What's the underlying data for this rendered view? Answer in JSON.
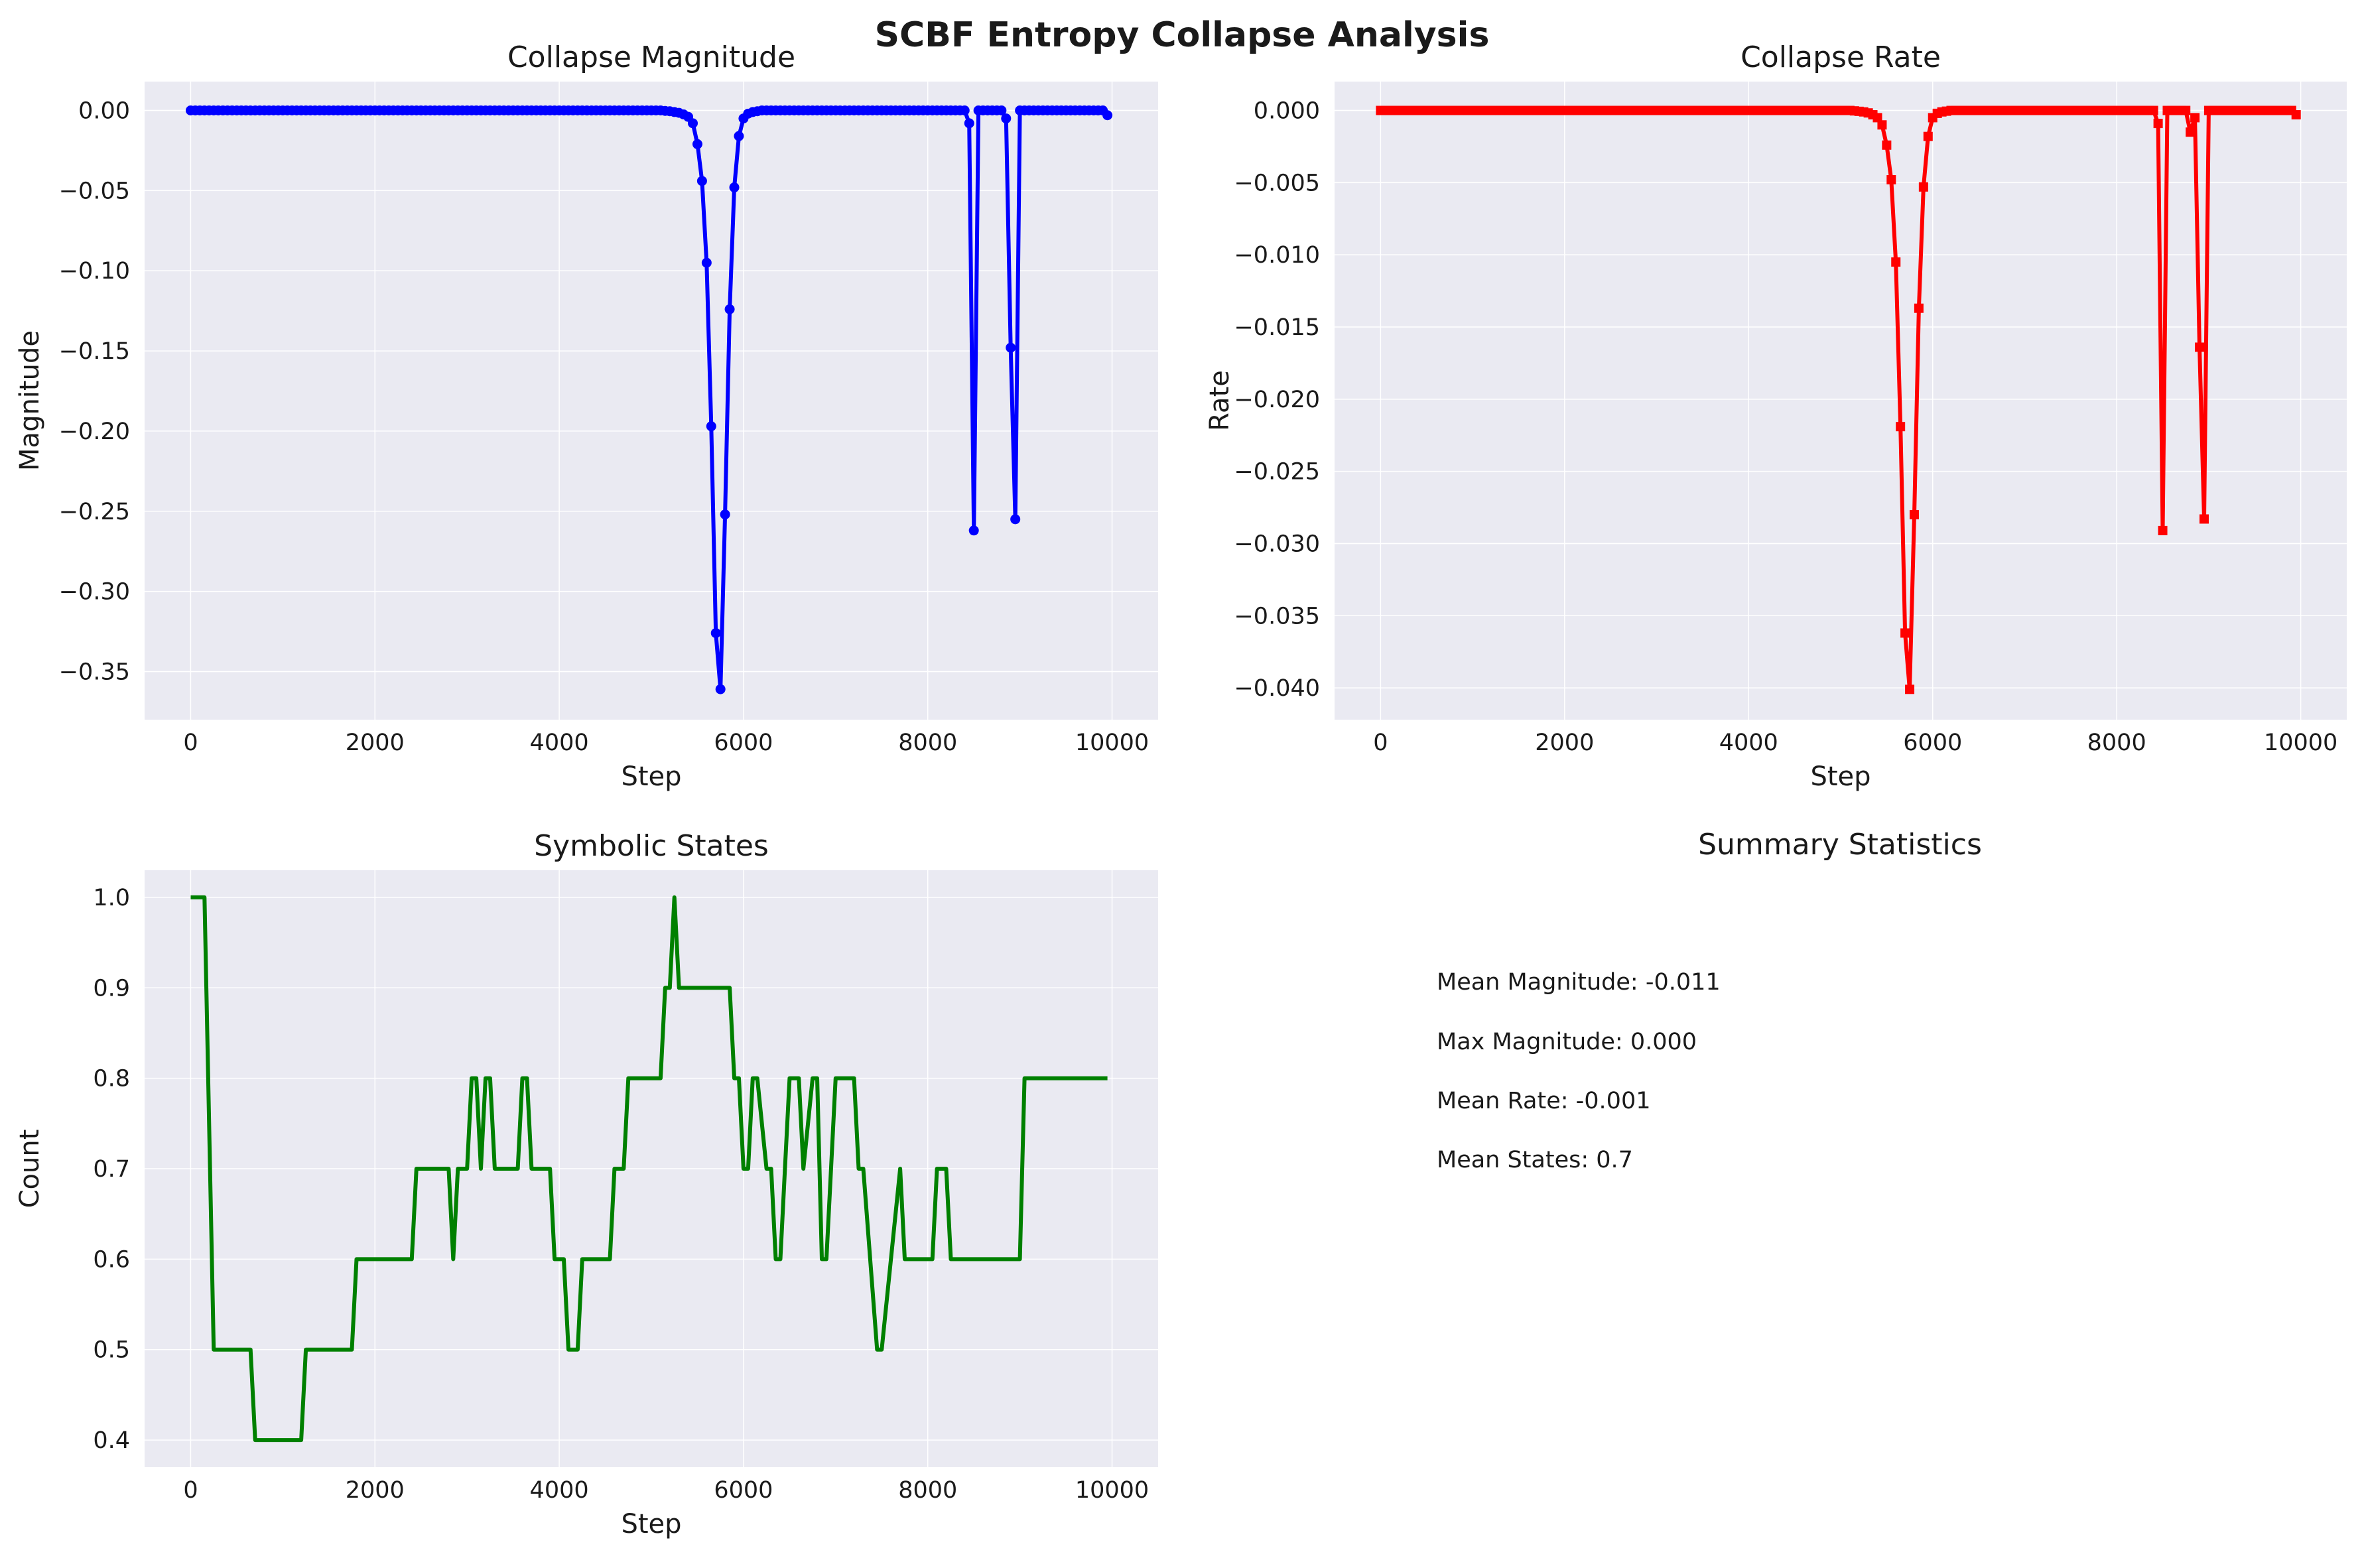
{
  "figure": {
    "title": "SCBF Entropy Collapse Analysis",
    "style": {
      "panel_bg": "#eaeaf2",
      "grid": "#ffffff",
      "text": "#1a1a1a"
    }
  },
  "chart_data": [
    {
      "type": "line",
      "title": "Collapse Magnitude",
      "xlabel": "Step",
      "ylabel": "Magnitude",
      "xlim": [
        -500,
        10500
      ],
      "ylim": [
        -0.38,
        0.018
      ],
      "xticks": [
        0,
        2000,
        4000,
        6000,
        8000,
        10000
      ],
      "yticks": [
        0.0,
        -0.05,
        -0.1,
        -0.15,
        -0.2,
        -0.25,
        -0.3,
        -0.35
      ],
      "ytick_labels": [
        "0.00",
        "−0.05",
        "−0.10",
        "−0.15",
        "−0.20",
        "−0.25",
        "−0.30",
        "−0.35"
      ],
      "grid": true,
      "series": [
        {
          "color": "#0000ff",
          "marker": "circle",
          "dense_zero_markers": {
            "from": 0,
            "to": 5050,
            "step": 50
          },
          "x": [
            5100,
            5150,
            5200,
            5250,
            5300,
            5350,
            5400,
            5450,
            5500,
            5550,
            5600,
            5650,
            5700,
            5750,
            5800,
            5850,
            5900,
            5950,
            6000,
            6050,
            6100,
            6150,
            6200,
            6250,
            6300,
            6350,
            6400,
            6450,
            6500,
            6550,
            6600,
            6650,
            6700,
            6750,
            6800,
            6850,
            6900,
            6950,
            7000,
            7050,
            7100,
            7150,
            7200,
            7250,
            7300,
            7350,
            7400,
            7450,
            7500,
            7550,
            7600,
            7650,
            7700,
            7750,
            7800,
            7850,
            7900,
            7950,
            8000,
            8050,
            8100,
            8150,
            8200,
            8250,
            8300,
            8350,
            8400,
            8450,
            8500,
            8550,
            8600,
            8650,
            8700,
            8750,
            8800,
            8850,
            8900,
            8950,
            9000,
            9050,
            9100,
            9150,
            9200,
            9250,
            9300,
            9350,
            9400,
            9450,
            9500,
            9550,
            9600,
            9650,
            9700,
            9750,
            9800,
            9850,
            9900,
            9950
          ],
          "y": [
            0,
            -0.0003,
            -0.0005,
            -0.001,
            -0.0015,
            -0.0025,
            -0.004,
            -0.008,
            -0.021,
            -0.044,
            -0.095,
            -0.197,
            -0.326,
            -0.361,
            -0.252,
            -0.124,
            -0.048,
            -0.016,
            -0.005,
            -0.002,
            -0.001,
            -0.0005,
            0,
            0,
            0,
            0,
            0,
            0,
            0,
            0,
            0,
            0,
            0,
            0,
            0,
            0,
            0,
            0,
            0,
            0,
            0,
            0,
            0,
            0,
            0,
            0,
            0,
            0,
            0,
            0,
            0,
            0,
            0,
            0,
            0,
            0,
            0,
            0,
            0,
            0,
            0,
            0,
            0,
            0,
            0,
            0,
            0,
            -0.008,
            -0.262,
            0,
            0,
            0,
            0,
            0,
            0,
            -0.005,
            -0.148,
            -0.255,
            0,
            0,
            0,
            0,
            0,
            0,
            0,
            0,
            0,
            0,
            0,
            0,
            0,
            0,
            0,
            0,
            0,
            0,
            0,
            -0.003
          ]
        }
      ]
    },
    {
      "type": "line",
      "title": "Collapse Rate",
      "xlabel": "Step",
      "ylabel": "Rate",
      "xlim": [
        -500,
        10500
      ],
      "ylim": [
        -0.0422,
        0.002
      ],
      "xticks": [
        0,
        2000,
        4000,
        6000,
        8000,
        10000
      ],
      "yticks": [
        0.0,
        -0.005,
        -0.01,
        -0.015,
        -0.02,
        -0.025,
        -0.03,
        -0.035,
        -0.04
      ],
      "ytick_labels": [
        "0.000",
        "−0.005",
        "−0.010",
        "−0.015",
        "−0.020",
        "−0.025",
        "−0.030",
        "−0.035",
        "−0.040"
      ],
      "grid": true,
      "series": [
        {
          "color": "#ff0000",
          "marker": "square",
          "dense_zero_markers": {
            "from": 0,
            "to": 5050,
            "step": 50
          },
          "x": [
            5100,
            5150,
            5200,
            5250,
            5300,
            5350,
            5400,
            5450,
            5500,
            5550,
            5600,
            5650,
            5700,
            5750,
            5800,
            5850,
            5900,
            5950,
            6000,
            6050,
            6100,
            6150,
            6200,
            6250,
            6300,
            6350,
            6400,
            6450,
            6500,
            6550,
            6600,
            6650,
            6700,
            6750,
            6800,
            6850,
            6900,
            6950,
            7000,
            7050,
            7100,
            7150,
            7200,
            7250,
            7300,
            7350,
            7400,
            7450,
            7500,
            7550,
            7600,
            7650,
            7700,
            7750,
            7800,
            7850,
            7900,
            7950,
            8000,
            8050,
            8100,
            8150,
            8200,
            8250,
            8300,
            8350,
            8400,
            8450,
            8500,
            8550,
            8600,
            8650,
            8700,
            8750,
            8800,
            8850,
            8900,
            8950,
            9000,
            9050,
            9100,
            9150,
            9200,
            9250,
            9300,
            9350,
            9400,
            9450,
            9500,
            9550,
            9600,
            9650,
            9700,
            9750,
            9800,
            9850,
            9900,
            9950
          ],
          "y": [
            0,
            -3e-05,
            -6e-05,
            -0.0001,
            -0.00017,
            -0.0003,
            -0.0005,
            -0.001,
            -0.0024,
            -0.0048,
            -0.0105,
            -0.0219,
            -0.0362,
            -0.0401,
            -0.028,
            -0.0137,
            -0.0053,
            -0.0018,
            -0.0005,
            -0.0002,
            -0.0001,
            -5e-05,
            0,
            0,
            0,
            0,
            0,
            0,
            0,
            0,
            0,
            0,
            0,
            0,
            0,
            0,
            0,
            0,
            0,
            0,
            0,
            0,
            0,
            0,
            0,
            0,
            0,
            0,
            0,
            0,
            0,
            0,
            0,
            0,
            0,
            0,
            0,
            0,
            0,
            0,
            0,
            0,
            0,
            0,
            0,
            0,
            0,
            -0.0009,
            -0.0291,
            0,
            0,
            0,
            0,
            0,
            -0.0015,
            -0.0005,
            -0.0164,
            -0.0283,
            0,
            0,
            0,
            0,
            0,
            0,
            0,
            0,
            0,
            0,
            0,
            0,
            0,
            0,
            0,
            0,
            0,
            0,
            0,
            -0.0003
          ]
        }
      ]
    },
    {
      "type": "line",
      "title": "Symbolic States",
      "xlabel": "Step",
      "ylabel": "Count",
      "xlim": [
        -500,
        10500
      ],
      "ylim": [
        0.37,
        1.03
      ],
      "xticks": [
        0,
        2000,
        4000,
        6000,
        8000,
        10000
      ],
      "yticks": [
        0.4,
        0.5,
        0.6,
        0.7,
        0.8,
        0.9,
        1.0
      ],
      "ytick_labels": [
        "0.4",
        "0.5",
        "0.6",
        "0.7",
        "0.8",
        "0.9",
        "1.0"
      ],
      "grid": true,
      "series": [
        {
          "color": "#008000",
          "marker": "none",
          "x": [
            0,
            150,
            250,
            300,
            650,
            700,
            1200,
            1250,
            1750,
            1800,
            2400,
            2450,
            2800,
            2850,
            2900,
            3000,
            3050,
            3100,
            3150,
            3200,
            3250,
            3300,
            3550,
            3600,
            3650,
            3700,
            3900,
            3950,
            4050,
            4100,
            4200,
            4250,
            4550,
            4600,
            4700,
            4750,
            5100,
            5150,
            5200,
            5250,
            5300,
            5850,
            5900,
            5950,
            6000,
            6050,
            6100,
            6150,
            6250,
            6300,
            6350,
            6400,
            6450,
            6500,
            6600,
            6650,
            6750,
            6800,
            6850,
            6900,
            6950,
            7000,
            7200,
            7250,
            7300,
            7450,
            7500,
            7700,
            7750,
            8050,
            8100,
            8150,
            8200,
            8250,
            8500,
            8550,
            9000,
            9050,
            9650,
            9750,
            9950
          ],
          "y": [
            1.0,
            1.0,
            0.5,
            0.5,
            0.5,
            0.4,
            0.4,
            0.5,
            0.5,
            0.6,
            0.6,
            0.7,
            0.7,
            0.6,
            0.7,
            0.7,
            0.8,
            0.8,
            0.7,
            0.8,
            0.8,
            0.7,
            0.7,
            0.8,
            0.8,
            0.7,
            0.7,
            0.6,
            0.6,
            0.5,
            0.5,
            0.6,
            0.6,
            0.7,
            0.7,
            0.8,
            0.8,
            0.9,
            0.9,
            1.0,
            0.9,
            0.9,
            0.8,
            0.8,
            0.7,
            0.7,
            0.8,
            0.8,
            0.7,
            0.7,
            0.6,
            0.6,
            0.7,
            0.8,
            0.8,
            0.7,
            0.8,
            0.8,
            0.6,
            0.6,
            0.7,
            0.8,
            0.8,
            0.7,
            0.7,
            0.5,
            0.5,
            0.7,
            0.6,
            0.6,
            0.7,
            0.7,
            0.7,
            0.6,
            0.6,
            0.6,
            0.6,
            0.8,
            0.8,
            0.8,
            0.8
          ]
        }
      ]
    }
  ],
  "summary": {
    "title": "Summary Statistics",
    "lines": [
      "Mean Magnitude: -0.011",
      "Max Magnitude: 0.000",
      "Mean Rate: -0.001",
      "Mean States: 0.7"
    ]
  }
}
